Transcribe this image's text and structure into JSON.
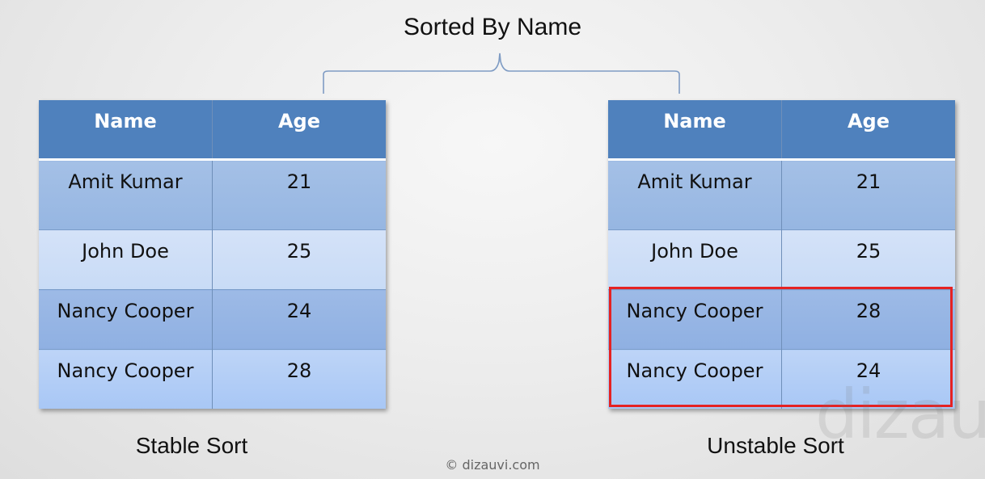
{
  "title": "Sorted By Name",
  "stable_table": {
    "headers": [
      "Name",
      "Age"
    ],
    "rows": [
      [
        "Amit Kumar",
        "21"
      ],
      [
        "John Doe",
        "25"
      ],
      [
        "Nancy Cooper",
        "24"
      ],
      [
        "Nancy Cooper",
        "28"
      ]
    ],
    "caption": "Stable Sort"
  },
  "unstable_table": {
    "headers": [
      "Name",
      "Age"
    ],
    "rows": [
      [
        "Amit Kumar",
        "21"
      ],
      [
        "John Doe",
        "25"
      ],
      [
        "Nancy Cooper",
        "28"
      ],
      [
        "Nancy Cooper",
        "24"
      ]
    ],
    "caption": "Unstable Sort"
  },
  "copyright": "© dizauvi.com",
  "watermark": "dizauvi",
  "colors": {
    "header": "#4f81bd",
    "highlight": "#e52222"
  }
}
